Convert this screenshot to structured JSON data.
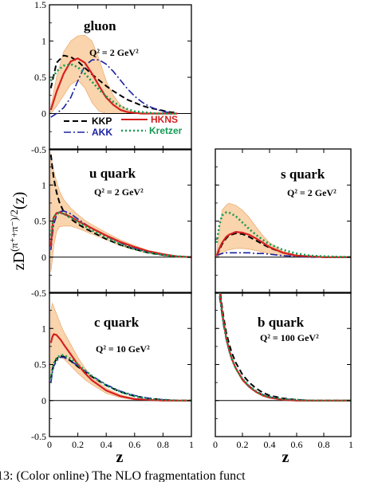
{
  "figure": {
    "ylabel_main": "zD",
    "ylabel_sup": "(π⁺+π⁻)/2",
    "ylabel_tail": "(z)",
    "xlabel": "z",
    "caption": "13: (Color online) The NLO fragmentation funct"
  },
  "colors": {
    "KKP": "#000000",
    "AKK": "#1a22a0",
    "HKNS": "#d42020",
    "Kretzer": "#129a52",
    "band": "#f9d4ac",
    "band_edge": "#e9a060"
  },
  "legend": {
    "kkp": "KKP",
    "akk": "AKK",
    "hkns": "HKNS",
    "kretzer": "Kretzer"
  },
  "chart_data": [
    {
      "type": "line",
      "panel": "gluon",
      "title": "gluon",
      "q2_text": "Q² = 2 GeV²",
      "xlim": [
        0,
        1
      ],
      "ylim": [
        -0.5,
        1.5
      ],
      "xticks": [],
      "xtick_labels": [],
      "yticks": [
        -0.5,
        0,
        0.5,
        1,
        1.5
      ],
      "ytick_labels": [
        "-0.5",
        "0",
        "0.5",
        "1",
        "1.5"
      ],
      "x": [
        0.01,
        0.05,
        0.1,
        0.15,
        0.2,
        0.25,
        0.3,
        0.35,
        0.4,
        0.45,
        0.5,
        0.55,
        0.6,
        0.65,
        0.7,
        0.75,
        0.8,
        0.85,
        0.9
      ],
      "series": [
        {
          "name": "KKP",
          "values": [
            0.35,
            0.7,
            0.8,
            0.78,
            0.72,
            0.63,
            0.54,
            0.46,
            0.38,
            0.31,
            0.25,
            0.19,
            0.15,
            0.11,
            0.08,
            0.06,
            0.04,
            0.02,
            0.01
          ]
        },
        {
          "name": "AKK",
          "values": [
            -0.05,
            0.0,
            0.08,
            0.22,
            0.45,
            0.66,
            0.74,
            0.74,
            0.68,
            0.58,
            0.46,
            0.34,
            0.24,
            0.16,
            0.1,
            0.06,
            0.03,
            0.01,
            0.0
          ]
        },
        {
          "name": "HKNS",
          "values": [
            0.05,
            0.3,
            0.55,
            0.72,
            0.76,
            0.7,
            0.55,
            0.38,
            0.22,
            0.12,
            0.05,
            0.02,
            0.01,
            0.0,
            0.0,
            0.0,
            0.0,
            0.0,
            0.0
          ]
        },
        {
          "name": "Kretzer",
          "values": [
            0.45,
            0.58,
            0.66,
            0.68,
            0.64,
            0.55,
            0.44,
            0.33,
            0.24,
            0.16,
            0.1,
            0.06,
            0.03,
            0.02,
            0.01,
            0.0,
            0.0,
            0.0,
            0.0
          ]
        }
      ],
      "band": {
        "upper": [
          0.1,
          0.5,
          0.85,
          1.0,
          1.07,
          1.08,
          1.0,
          0.75,
          0.45,
          0.25,
          0.12,
          0.05,
          0.02,
          0.0,
          0.0,
          0.0,
          0.0,
          0.0,
          0.0
        ],
        "lower": [
          0.0,
          0.1,
          0.25,
          0.4,
          0.46,
          0.35,
          0.15,
          0.03,
          0.0,
          0.0,
          0.0,
          0.0,
          0.0,
          0.0,
          0.0,
          0.0,
          0.0,
          0.0,
          0.0
        ]
      }
    },
    {
      "type": "line",
      "panel": "u quark",
      "title": "u quark",
      "q2_text": "Q² = 2 GeV²",
      "xlim": [
        0,
        1
      ],
      "ylim": [
        -0.5,
        1.5
      ],
      "xticks": [],
      "xtick_labels": [],
      "yticks": [
        -0.5,
        0,
        0.5,
        1
      ],
      "ytick_labels": [
        "-0.5",
        "0",
        "0.5",
        "1"
      ],
      "x": [
        0.01,
        0.02,
        0.03,
        0.05,
        0.07,
        0.1,
        0.15,
        0.2,
        0.25,
        0.3,
        0.4,
        0.5,
        0.6,
        0.7,
        0.8,
        0.9,
        1.0
      ],
      "series": [
        {
          "name": "KKP",
          "values": [
            1.42,
            1.25,
            1.1,
            0.9,
            0.76,
            0.63,
            0.53,
            0.46,
            0.4,
            0.35,
            0.25,
            0.17,
            0.11,
            0.06,
            0.03,
            0.01,
            0.0
          ]
        },
        {
          "name": "AKK",
          "values": [
            0.1,
            0.3,
            0.45,
            0.58,
            0.63,
            0.64,
            0.6,
            0.53,
            0.46,
            0.4,
            0.29,
            0.2,
            0.12,
            0.07,
            0.03,
            0.01,
            0.0
          ]
        },
        {
          "name": "HKNS",
          "values": [
            0.15,
            0.4,
            0.55,
            0.61,
            0.62,
            0.6,
            0.56,
            0.5,
            0.45,
            0.4,
            0.3,
            0.21,
            0.14,
            0.08,
            0.04,
            0.01,
            0.0
          ]
        },
        {
          "name": "Kretzer",
          "values": [
            0.3,
            0.45,
            0.55,
            0.6,
            0.62,
            0.6,
            0.55,
            0.49,
            0.43,
            0.37,
            0.27,
            0.18,
            0.11,
            0.06,
            0.03,
            0.01,
            0.0
          ]
        }
      ],
      "band": {
        "upper": [
          1.45,
          1.3,
          1.2,
          1.05,
          0.92,
          0.8,
          0.68,
          0.59,
          0.51,
          0.45,
          0.34,
          0.24,
          0.16,
          0.09,
          0.05,
          0.01,
          0.0
        ],
        "lower": [
          -0.2,
          -0.05,
          0.15,
          0.35,
          0.42,
          0.43,
          0.43,
          0.4,
          0.36,
          0.32,
          0.24,
          0.16,
          0.1,
          0.05,
          0.02,
          0.0,
          0.0
        ]
      }
    },
    {
      "type": "line",
      "panel": "s quark",
      "title": "s quark",
      "q2_text": "Q² = 2 GeV²",
      "xlim": [
        0,
        1
      ],
      "ylim": [
        -0.5,
        1.5
      ],
      "xticks": [],
      "xtick_labels": [],
      "yticks": [
        -0.5,
        0,
        0.5,
        1
      ],
      "ytick_labels": [],
      "x": [
        0.01,
        0.03,
        0.05,
        0.08,
        0.1,
        0.15,
        0.2,
        0.25,
        0.3,
        0.35,
        0.4,
        0.5,
        0.6,
        0.7,
        0.8,
        1.0
      ],
      "series": [
        {
          "name": "KKP",
          "values": [
            0.02,
            0.1,
            0.18,
            0.26,
            0.3,
            0.33,
            0.32,
            0.28,
            0.23,
            0.18,
            0.13,
            0.06,
            0.02,
            0.01,
            0.0,
            0.0
          ]
        },
        {
          "name": "AKK",
          "values": [
            0.02,
            0.04,
            0.05,
            0.06,
            0.06,
            0.06,
            0.06,
            0.06,
            0.05,
            0.05,
            0.04,
            0.02,
            0.01,
            0.0,
            0.0,
            0.0
          ]
        },
        {
          "name": "HKNS",
          "values": [
            0.02,
            0.12,
            0.2,
            0.28,
            0.31,
            0.35,
            0.34,
            0.31,
            0.26,
            0.2,
            0.14,
            0.06,
            0.02,
            0.01,
            0.0,
            0.0
          ]
        },
        {
          "name": "Kretzer",
          "values": [
            0.2,
            0.45,
            0.58,
            0.62,
            0.62,
            0.57,
            0.48,
            0.39,
            0.31,
            0.24,
            0.18,
            0.1,
            0.05,
            0.02,
            0.01,
            0.0
          ]
        }
      ],
      "band": {
        "upper": [
          0.05,
          0.4,
          0.65,
          0.72,
          0.75,
          0.72,
          0.65,
          0.55,
          0.42,
          0.3,
          0.2,
          0.08,
          0.03,
          0.01,
          0.0,
          0.0
        ],
        "lower": [
          0.0,
          0.02,
          0.05,
          0.09,
          0.1,
          0.12,
          0.12,
          0.11,
          0.09,
          0.07,
          0.05,
          0.02,
          0.0,
          0.0,
          0.0,
          0.0
        ]
      }
    },
    {
      "type": "line",
      "panel": "c quark",
      "title": "c quark",
      "q2_text": "Q² = 10 GeV²",
      "xlim": [
        0,
        1
      ],
      "ylim": [
        -0.5,
        1.5
      ],
      "xticks": [
        0,
        0.2,
        0.4,
        0.6,
        0.8,
        1
      ],
      "xtick_labels": [
        "0",
        "0.2",
        "0.4",
        "0.6",
        "0.8",
        "1"
      ],
      "yticks": [
        -0.5,
        0,
        0.5,
        1
      ],
      "ytick_labels": [
        "-0.5",
        "0",
        "0.5",
        "1"
      ],
      "x": [
        0.01,
        0.02,
        0.03,
        0.05,
        0.08,
        0.1,
        0.15,
        0.2,
        0.25,
        0.3,
        0.4,
        0.5,
        0.6,
        0.7,
        0.8,
        0.9,
        1.0
      ],
      "series": [
        {
          "name": "KKP",
          "values": [
            0.3,
            0.42,
            0.5,
            0.58,
            0.62,
            0.61,
            0.55,
            0.47,
            0.4,
            0.33,
            0.21,
            0.12,
            0.06,
            0.03,
            0.01,
            0.0,
            0.0
          ]
        },
        {
          "name": "AKK",
          "values": [
            0.25,
            0.38,
            0.47,
            0.55,
            0.6,
            0.6,
            0.55,
            0.48,
            0.41,
            0.34,
            0.22,
            0.13,
            0.07,
            0.03,
            0.01,
            0.0,
            0.0
          ]
        },
        {
          "name": "HKNS",
          "values": [
            0.8,
            0.88,
            0.92,
            0.91,
            0.84,
            0.78,
            0.64,
            0.5,
            0.38,
            0.28,
            0.14,
            0.06,
            0.02,
            0.01,
            0.0,
            0.0,
            0.0
          ]
        },
        {
          "name": "Kretzer",
          "values": [
            0.3,
            0.42,
            0.51,
            0.59,
            0.63,
            0.63,
            0.58,
            0.5,
            0.42,
            0.34,
            0.21,
            0.12,
            0.06,
            0.02,
            0.01,
            0.0,
            0.0
          ]
        }
      ],
      "band": {
        "upper": [
          1.25,
          1.35,
          1.3,
          1.2,
          1.05,
          0.96,
          0.78,
          0.6,
          0.45,
          0.33,
          0.17,
          0.08,
          0.03,
          0.01,
          0.0,
          0.0,
          0.0
        ],
        "lower": [
          0.35,
          0.45,
          0.52,
          0.58,
          0.6,
          0.58,
          0.48,
          0.38,
          0.29,
          0.22,
          0.1,
          0.04,
          0.01,
          0.0,
          0.0,
          0.0,
          0.0
        ]
      }
    },
    {
      "type": "line",
      "panel": "b quark",
      "title": "b quark",
      "q2_text": "Q² = 100 GeV²",
      "xlim": [
        0,
        1
      ],
      "ylim": [
        -0.5,
        1.5
      ],
      "xticks": [
        0,
        0.2,
        0.4,
        0.6,
        0.8,
        1
      ],
      "xtick_labels": [
        "0",
        "0.2",
        "0.4",
        "0.6",
        "0.8",
        "1"
      ],
      "yticks": [
        -0.5,
        0,
        0.5,
        1
      ],
      "ytick_labels": [],
      "x": [
        0.03,
        0.04,
        0.05,
        0.06,
        0.08,
        0.1,
        0.12,
        0.15,
        0.2,
        0.25,
        0.3,
        0.35,
        0.4,
        0.5,
        0.6,
        0.7,
        0.8,
        1.0
      ],
      "series": [
        {
          "name": "KKP",
          "values": [
            1.6,
            1.45,
            1.3,
            1.17,
            0.95,
            0.8,
            0.67,
            0.53,
            0.36,
            0.25,
            0.17,
            0.11,
            0.07,
            0.03,
            0.01,
            0.0,
            0.0,
            0.0
          ]
        },
        {
          "name": "AKK",
          "values": [
            1.45,
            1.32,
            1.18,
            1.05,
            0.85,
            0.7,
            0.58,
            0.45,
            0.3,
            0.2,
            0.13,
            0.08,
            0.05,
            0.02,
            0.01,
            0.0,
            0.0,
            0.0
          ]
        },
        {
          "name": "HKNS",
          "values": [
            1.55,
            1.4,
            1.24,
            1.1,
            0.88,
            0.72,
            0.59,
            0.45,
            0.29,
            0.19,
            0.12,
            0.07,
            0.04,
            0.01,
            0.0,
            0.0,
            0.0,
            0.0
          ]
        },
        {
          "name": "Kretzer",
          "values": [
            1.5,
            1.36,
            1.21,
            1.08,
            0.87,
            0.71,
            0.58,
            0.45,
            0.3,
            0.2,
            0.13,
            0.08,
            0.05,
            0.02,
            0.01,
            0.0,
            0.0,
            0.0
          ]
        }
      ],
      "band": {
        "upper": [
          1.6,
          1.44,
          1.27,
          1.13,
          0.91,
          0.74,
          0.61,
          0.47,
          0.31,
          0.2,
          0.13,
          0.08,
          0.05,
          0.02,
          0.0,
          0.0,
          0.0,
          0.0
        ],
        "lower": [
          1.5,
          1.36,
          1.21,
          1.07,
          0.85,
          0.7,
          0.57,
          0.43,
          0.27,
          0.18,
          0.11,
          0.06,
          0.03,
          0.01,
          0.0,
          0.0,
          0.0,
          0.0
        ]
      }
    }
  ]
}
